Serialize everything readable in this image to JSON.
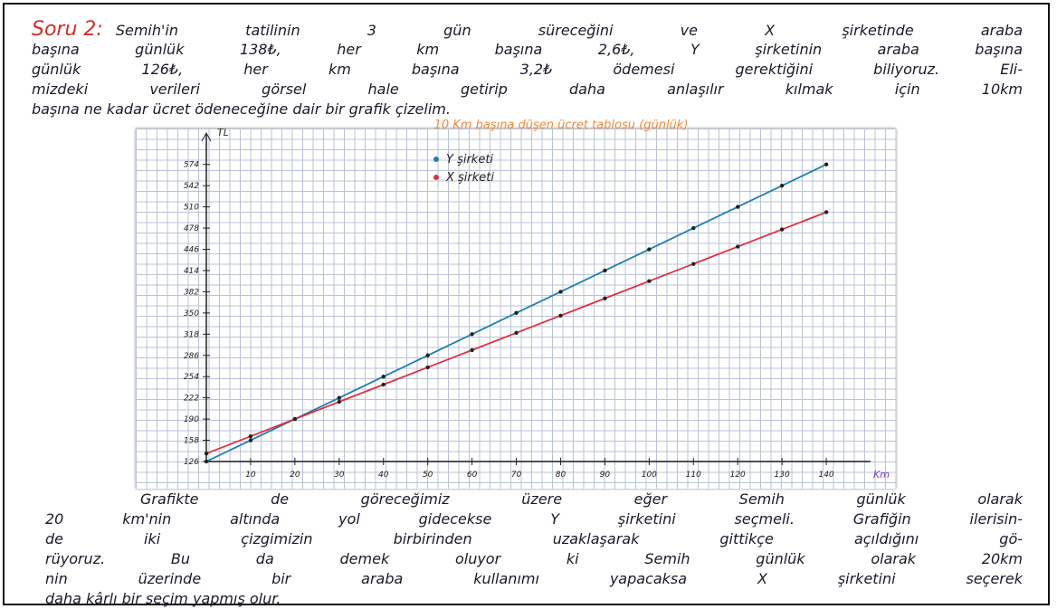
{
  "question": {
    "label": "Soru 2:",
    "lines": [
      "Semih'in tatilinin 3 gün süreceğini ve X şirketinde araba",
      "başına günlük 138₺, her km başına 2,6₺, Y şirketinin araba başına",
      "günlük 126₺, her km başına 3,2₺ ödemesi gerektiğini biliyoruz. Eli-",
      "mizdeki verileri görsel hale getirip daha anlaşılır kılmak için 10km",
      "başına ne kadar ücret ödeneceğine dair bir grafik çizelim."
    ]
  },
  "chart_data": {
    "type": "line",
    "title": "10 Km başına düşen ücret tablosu (günlük)",
    "y_label": "TL",
    "x_label": "Km",
    "x": [
      0,
      10,
      20,
      30,
      40,
      50,
      60,
      70,
      80,
      90,
      100,
      110,
      120,
      130,
      140
    ],
    "series": [
      {
        "name": "Y şirketi",
        "color": "#1f7fb0",
        "values": [
          126,
          158,
          190,
          222,
          254,
          286,
          318,
          350,
          382,
          414,
          446,
          478,
          510,
          542,
          574
        ]
      },
      {
        "name": "X şirketi",
        "color": "#e0303e",
        "values": [
          138,
          164,
          190,
          216,
          242,
          268,
          294,
          320,
          346,
          372,
          398,
          424,
          450,
          476,
          502
        ]
      }
    ],
    "xlim": [
      0,
      150
    ],
    "ylim": [
      126,
      590
    ],
    "xticks": [
      10,
      20,
      30,
      40,
      50,
      60,
      70,
      80,
      90,
      100,
      110,
      120,
      130,
      140
    ],
    "yticks": [
      126,
      158,
      190,
      222,
      254,
      286,
      318,
      350,
      382,
      414,
      446,
      478,
      510,
      542,
      574
    ]
  },
  "conclusion": {
    "lines": [
      "Grafikte de göreceğimiz üzere eğer Semih günlük olarak",
      "20 km'nin altında yol gidecekse Y şirketini seçmeli. Grafiğin ilerisin-",
      "de iki çizgimizin birbirinden uzaklaşarak gittikçe açıldığını gö-",
      "rüyoruz. Bu da demek oluyor ki Semih günlük olarak 20km",
      "nin üzerinde bir araba kullanımı yapacaksa X şirketini seçerek",
      "daha kârlı bir seçim yapmış olur."
    ]
  }
}
